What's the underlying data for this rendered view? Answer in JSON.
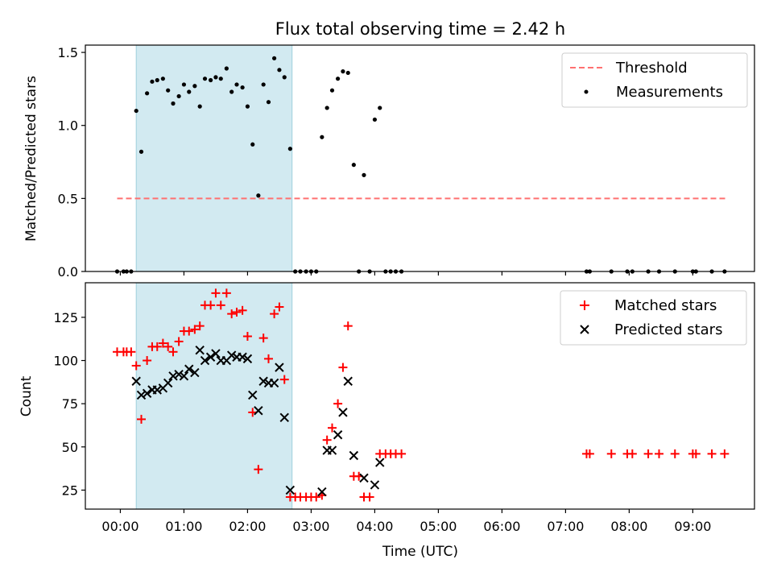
{
  "chart_data": {
    "title": "Flux total observing time = 2.42 h",
    "xlabel": "Time (UTC)",
    "xlim": [
      -0.55,
      9.97
    ],
    "x_ticks": [
      0,
      1,
      2,
      3,
      4,
      5,
      6,
      7,
      8,
      9
    ],
    "x_tick_labels": [
      "00:00",
      "01:00",
      "02:00",
      "03:00",
      "04:00",
      "05:00",
      "06:00",
      "07:00",
      "08:00",
      "09:00"
    ],
    "observing_window": {
      "start": 0.25,
      "end": 2.7,
      "color": "#add8e6"
    },
    "top": {
      "type": "scatter",
      "ylabel": "Matched/Predicted stars",
      "ylim": [
        0,
        1.55
      ],
      "y_ticks": [
        0,
        0.5,
        1.0,
        1.5
      ],
      "y_tick_labels": [
        "0.0",
        "0.5",
        "1.0",
        "1.5"
      ],
      "threshold": {
        "name": "Threshold",
        "value": 0.5,
        "x_start": -0.05,
        "x_end": 9.52,
        "color": "#ff7070"
      },
      "series_name": "Measurements",
      "points": [
        [
          -0.05,
          0
        ],
        [
          0.05,
          0
        ],
        [
          0.1,
          0
        ],
        [
          0.17,
          0
        ],
        [
          0.25,
          1.1
        ],
        [
          0.33,
          0.82
        ],
        [
          0.42,
          1.22
        ],
        [
          0.5,
          1.3
        ],
        [
          0.58,
          1.31
        ],
        [
          0.67,
          1.32
        ],
        [
          0.75,
          1.24
        ],
        [
          0.83,
          1.15
        ],
        [
          0.92,
          1.2
        ],
        [
          1.0,
          1.28
        ],
        [
          1.08,
          1.23
        ],
        [
          1.17,
          1.27
        ],
        [
          1.25,
          1.13
        ],
        [
          1.33,
          1.32
        ],
        [
          1.42,
          1.31
        ],
        [
          1.5,
          1.33
        ],
        [
          1.58,
          1.32
        ],
        [
          1.67,
          1.39
        ],
        [
          1.75,
          1.23
        ],
        [
          1.83,
          1.28
        ],
        [
          1.92,
          1.26
        ],
        [
          2.0,
          1.13
        ],
        [
          2.08,
          0.87
        ],
        [
          2.17,
          0.52
        ],
        [
          2.25,
          1.28
        ],
        [
          2.33,
          1.16
        ],
        [
          2.42,
          1.46
        ],
        [
          2.5,
          1.38
        ],
        [
          2.58,
          1.33
        ],
        [
          2.67,
          0.84
        ],
        [
          2.75,
          0
        ],
        [
          2.83,
          0
        ],
        [
          2.92,
          0
        ],
        [
          3.0,
          0
        ],
        [
          3.08,
          0
        ],
        [
          3.17,
          0.92
        ],
        [
          3.25,
          1.12
        ],
        [
          3.33,
          1.24
        ],
        [
          3.42,
          1.32
        ],
        [
          3.5,
          1.37
        ],
        [
          3.58,
          1.36
        ],
        [
          3.67,
          0.73
        ],
        [
          3.75,
          0
        ],
        [
          3.83,
          0.66
        ],
        [
          3.92,
          0
        ],
        [
          4.0,
          1.04
        ],
        [
          4.08,
          1.12
        ],
        [
          4.17,
          0
        ],
        [
          4.25,
          0
        ],
        [
          4.33,
          0
        ],
        [
          4.42,
          0
        ],
        [
          7.33,
          0
        ],
        [
          7.38,
          0
        ],
        [
          7.72,
          0
        ],
        [
          7.97,
          0
        ],
        [
          8.05,
          0
        ],
        [
          8.3,
          0
        ],
        [
          8.47,
          0
        ],
        [
          8.72,
          0
        ],
        [
          9.0,
          0
        ],
        [
          9.05,
          0
        ],
        [
          9.3,
          0
        ],
        [
          9.5,
          0
        ]
      ]
    },
    "bottom": {
      "type": "scatter",
      "ylabel": "Count",
      "ylim": [
        14,
        145
      ],
      "y_ticks": [
        25,
        50,
        75,
        100,
        125
      ],
      "y_tick_labels": [
        "25",
        "50",
        "75",
        "100",
        "125"
      ],
      "series": [
        {
          "name": "Matched stars",
          "marker": "plus",
          "color": "#ff0000",
          "points": [
            [
              -0.05,
              105
            ],
            [
              0.05,
              105
            ],
            [
              0.1,
              105
            ],
            [
              0.17,
              105
            ],
            [
              0.25,
              97
            ],
            [
              0.33,
              66
            ],
            [
              0.42,
              100
            ],
            [
              0.5,
              108
            ],
            [
              0.58,
              108
            ],
            [
              0.67,
              110
            ],
            [
              0.75,
              108
            ],
            [
              0.83,
              105
            ],
            [
              0.92,
              111
            ],
            [
              1.0,
              117
            ],
            [
              1.08,
              117
            ],
            [
              1.17,
              118
            ],
            [
              1.25,
              120
            ],
            [
              1.33,
              132
            ],
            [
              1.42,
              132
            ],
            [
              1.5,
              139
            ],
            [
              1.58,
              132
            ],
            [
              1.67,
              139
            ],
            [
              1.75,
              127
            ],
            [
              1.83,
              128
            ],
            [
              1.92,
              129
            ],
            [
              2.0,
              114
            ],
            [
              2.08,
              70
            ],
            [
              2.17,
              37
            ],
            [
              2.25,
              113
            ],
            [
              2.33,
              101
            ],
            [
              2.42,
              127
            ],
            [
              2.5,
              131
            ],
            [
              2.58,
              89
            ],
            [
              2.67,
              21
            ],
            [
              2.75,
              21
            ],
            [
              2.83,
              21
            ],
            [
              2.92,
              21
            ],
            [
              3.0,
              21
            ],
            [
              3.08,
              21
            ],
            [
              3.17,
              22
            ],
            [
              3.25,
              54
            ],
            [
              3.33,
              61
            ],
            [
              3.42,
              75
            ],
            [
              3.5,
              96
            ],
            [
              3.58,
              120
            ],
            [
              3.67,
              33
            ],
            [
              3.75,
              33
            ],
            [
              3.83,
              21
            ],
            [
              3.92,
              21
            ],
            [
              4.08,
              46
            ],
            [
              4.17,
              46
            ],
            [
              4.25,
              46
            ],
            [
              4.33,
              46
            ],
            [
              4.42,
              46
            ],
            [
              7.33,
              46
            ],
            [
              7.38,
              46
            ],
            [
              7.72,
              46
            ],
            [
              7.97,
              46
            ],
            [
              8.05,
              46
            ],
            [
              8.3,
              46
            ],
            [
              8.47,
              46
            ],
            [
              8.72,
              46
            ],
            [
              9.0,
              46
            ],
            [
              9.05,
              46
            ],
            [
              9.3,
              46
            ],
            [
              9.5,
              46
            ]
          ]
        },
        {
          "name": "Predicted stars",
          "marker": "x",
          "color": "#000000",
          "points": [
            [
              0.25,
              88
            ],
            [
              0.33,
              80
            ],
            [
              0.42,
              81
            ],
            [
              0.5,
              83
            ],
            [
              0.58,
              83
            ],
            [
              0.67,
              84
            ],
            [
              0.75,
              87
            ],
            [
              0.83,
              91
            ],
            [
              0.92,
              92
            ],
            [
              1.0,
              91
            ],
            [
              1.08,
              95
            ],
            [
              1.17,
              93
            ],
            [
              1.25,
              106
            ],
            [
              1.33,
              100
            ],
            [
              1.42,
              102
            ],
            [
              1.5,
              104
            ],
            [
              1.58,
              100
            ],
            [
              1.67,
              100
            ],
            [
              1.75,
              103
            ],
            [
              1.83,
              102
            ],
            [
              1.92,
              102
            ],
            [
              2.0,
              101
            ],
            [
              2.08,
              80
            ],
            [
              2.17,
              71
            ],
            [
              2.25,
              88
            ],
            [
              2.33,
              87
            ],
            [
              2.42,
              87
            ],
            [
              2.5,
              96
            ],
            [
              2.58,
              67
            ],
            [
              2.67,
              25
            ],
            [
              3.17,
              24
            ],
            [
              3.25,
              48
            ],
            [
              3.33,
              48
            ],
            [
              3.42,
              57
            ],
            [
              3.5,
              70
            ],
            [
              3.58,
              88
            ],
            [
              3.67,
              45
            ],
            [
              3.83,
              32
            ],
            [
              4.0,
              28
            ],
            [
              4.08,
              41
            ]
          ]
        }
      ]
    }
  }
}
